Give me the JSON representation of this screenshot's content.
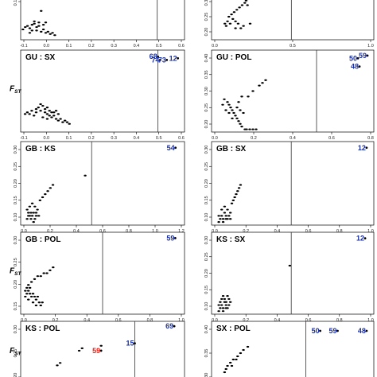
{
  "colors": {
    "points": "#000000",
    "outlier_blue": "#1a2fa0",
    "outlier_red": "#e0221a",
    "threshold_line": "#333333"
  },
  "chart_data": [
    {
      "type": "scatter",
      "title": "",
      "ylabel": "",
      "xticks": [
        "-0.1",
        "0.0",
        "0.1",
        "0.2",
        "0.3",
        "0.4",
        "0.5",
        "0.6"
      ],
      "yticks": [
        "0.15"
      ],
      "xlim": [
        -0.1,
        0.62
      ],
      "ylim": [
        0.05,
        0.45
      ],
      "threshold_x": 0.5,
      "points": [
        [
          -0.07,
          0.17
        ],
        [
          -0.05,
          0.18
        ],
        [
          -0.03,
          0.16
        ],
        [
          -0.06,
          0.15
        ],
        [
          -0.04,
          0.19
        ],
        [
          -0.02,
          0.17
        ],
        [
          -0.08,
          0.16
        ],
        [
          -0.03,
          0.13
        ],
        [
          -0.01,
          0.12
        ],
        [
          0.0,
          0.14
        ],
        [
          0.01,
          0.11
        ],
        [
          0.02,
          0.12
        ],
        [
          0.03,
          0.1
        ],
        [
          0.04,
          0.11
        ],
        [
          -0.05,
          0.13
        ],
        [
          -0.09,
          0.14
        ],
        [
          -0.02,
          0.2
        ],
        [
          -0.04,
          0.21
        ],
        [
          0.0,
          0.18
        ],
        [
          0.01,
          0.2
        ],
        [
          -0.01,
          0.3
        ],
        [
          0.05,
          0.09
        ],
        [
          -0.06,
          0.11
        ]
      ],
      "outliers": []
    },
    {
      "type": "scatter",
      "title": "",
      "ylabel": "",
      "xticks": [
        "0.0",
        "0.5",
        "1.0"
      ],
      "yticks": [
        "0.30",
        "0.25",
        "0.20"
      ],
      "xlim": [
        -0.1,
        1.12
      ],
      "ylim": [
        0.15,
        0.35
      ],
      "threshold_x": 0.5,
      "points": [
        [
          0.0,
          0.22
        ],
        [
          0.02,
          0.23
        ],
        [
          0.04,
          0.22
        ],
        [
          0.06,
          0.24
        ],
        [
          0.08,
          0.23
        ],
        [
          0.1,
          0.22
        ],
        [
          0.12,
          0.2
        ],
        [
          0.14,
          0.21
        ],
        [
          0.03,
          0.25
        ],
        [
          0.05,
          0.26
        ],
        [
          0.07,
          0.27
        ],
        [
          0.09,
          0.28
        ],
        [
          0.11,
          0.29
        ],
        [
          0.13,
          0.3
        ],
        [
          0.15,
          0.31
        ],
        [
          0.17,
          0.3
        ],
        [
          0.01,
          0.21
        ],
        [
          0.18,
          0.33
        ],
        [
          0.16,
          0.32
        ],
        [
          0.19,
          0.22
        ],
        [
          0.08,
          0.2
        ]
      ],
      "outliers": []
    },
    {
      "type": "scatter",
      "title": "GU : SX",
      "ylabel": "FST",
      "xticks": [
        "-0.1",
        "0.0",
        "0.1",
        "0.2",
        "0.3",
        "0.4",
        "0.5",
        "0.6"
      ],
      "yticks": [],
      "xlim": [
        -0.12,
        0.62
      ],
      "ylim": [
        0.0,
        0.5
      ],
      "threshold_x": 0.5,
      "points": [
        [
          -0.09,
          0.12
        ],
        [
          -0.07,
          0.13
        ],
        [
          -0.05,
          0.12
        ],
        [
          -0.03,
          0.13
        ],
        [
          -0.01,
          0.12
        ],
        [
          0.0,
          0.11
        ],
        [
          0.01,
          0.13
        ],
        [
          0.02,
          0.12
        ],
        [
          -0.04,
          0.15
        ],
        [
          -0.02,
          0.16
        ],
        [
          -0.01,
          0.14
        ],
        [
          0.0,
          0.15
        ],
        [
          0.01,
          0.1
        ],
        [
          0.02,
          0.09
        ],
        [
          0.03,
          0.1
        ],
        [
          0.04,
          0.08
        ],
        [
          0.05,
          0.07
        ],
        [
          0.06,
          0.08
        ],
        [
          0.07,
          0.06
        ],
        [
          0.08,
          0.07
        ],
        [
          0.09,
          0.06
        ],
        [
          0.03,
          0.12
        ],
        [
          -0.06,
          0.1
        ],
        [
          -0.08,
          0.11
        ],
        [
          -0.02,
          0.09
        ],
        [
          0.0,
          0.08
        ],
        [
          -0.1,
          0.11
        ],
        [
          0.04,
          0.13
        ],
        [
          0.05,
          0.11
        ],
        [
          -0.03,
          0.17
        ],
        [
          0.1,
          0.05
        ],
        [
          -0.05,
          0.14
        ]
      ],
      "outliers": [
        {
          "label": "68",
          "x": 0.5,
          "y": 0.46,
          "color": "blue"
        },
        {
          "label": "74",
          "x": 0.51,
          "y": 0.44,
          "color": "blue"
        },
        {
          "label": "73",
          "x": 0.54,
          "y": 0.44,
          "color": "blue"
        },
        {
          "label": "12",
          "x": 0.59,
          "y": 0.45,
          "color": "blue"
        }
      ]
    },
    {
      "type": "scatter",
      "title": "GU : POL",
      "ylabel": "",
      "xticks": [
        "0.0",
        "0.2",
        "0.4",
        "0.6",
        "0.8"
      ],
      "yticks": [
        "0.40",
        "0.35",
        "0.30",
        "0.25",
        "0.20"
      ],
      "xlim": [
        -0.16,
        0.86
      ],
      "ylim": [
        0.15,
        0.45
      ],
      "threshold_x": 0.5,
      "points": [
        [
          -0.08,
          0.27
        ],
        [
          -0.06,
          0.26
        ],
        [
          -0.05,
          0.25
        ],
        [
          -0.04,
          0.24
        ],
        [
          -0.03,
          0.23
        ],
        [
          -0.02,
          0.22
        ],
        [
          -0.01,
          0.21
        ],
        [
          0.0,
          0.2
        ],
        [
          0.01,
          0.19
        ],
        [
          0.02,
          0.18
        ],
        [
          0.03,
          0.17
        ],
        [
          0.05,
          0.16
        ],
        [
          0.06,
          0.16
        ],
        [
          0.08,
          0.16
        ],
        [
          0.1,
          0.16
        ],
        [
          0.12,
          0.16
        ],
        [
          -0.05,
          0.22
        ],
        [
          -0.03,
          0.2
        ],
        [
          0.0,
          0.24
        ],
        [
          0.02,
          0.23
        ],
        [
          0.04,
          0.22
        ],
        [
          -0.07,
          0.23
        ],
        [
          0.07,
          0.28
        ],
        [
          0.1,
          0.3
        ],
        [
          0.14,
          0.32
        ],
        [
          0.16,
          0.33
        ],
        [
          0.18,
          0.34
        ],
        [
          -0.09,
          0.25
        ],
        [
          0.01,
          0.26
        ],
        [
          0.03,
          0.28
        ]
      ],
      "outliers": [
        {
          "label": "50",
          "x": 0.76,
          "y": 0.42,
          "color": "blue"
        },
        {
          "label": "59",
          "x": 0.82,
          "y": 0.43,
          "color": "blue"
        },
        {
          "label": "48",
          "x": 0.77,
          "y": 0.39,
          "color": "blue"
        }
      ]
    },
    {
      "type": "scatter",
      "title": "GB : KS",
      "ylabel": "",
      "xticks": [
        "0.0",
        "0.2",
        "0.4",
        "0.6",
        "0.8",
        "1.0",
        "1.2"
      ],
      "yticks": [
        "0.30",
        "0.25",
        "0.20",
        "0.15",
        "0.10"
      ],
      "xlim": [
        -0.05,
        1.22
      ],
      "ylim": [
        0.08,
        0.35
      ],
      "threshold_x": 0.5,
      "points": [
        [
          0.0,
          0.13
        ],
        [
          0.01,
          0.12
        ],
        [
          0.02,
          0.11
        ],
        [
          0.03,
          0.12
        ],
        [
          0.04,
          0.11
        ],
        [
          0.05,
          0.12
        ],
        [
          0.06,
          0.1
        ],
        [
          0.07,
          0.11
        ],
        [
          0.02,
          0.14
        ],
        [
          0.04,
          0.15
        ],
        [
          0.06,
          0.14
        ],
        [
          0.08,
          0.13
        ],
        [
          0.1,
          0.16
        ],
        [
          0.12,
          0.17
        ],
        [
          0.14,
          0.18
        ],
        [
          0.16,
          0.19
        ],
        [
          0.18,
          0.2
        ],
        [
          0.2,
          0.21
        ],
        [
          0.0,
          0.1
        ],
        [
          0.01,
          0.11
        ],
        [
          0.03,
          0.1
        ],
        [
          0.05,
          0.09
        ],
        [
          0.07,
          0.12
        ],
        [
          0.09,
          0.11
        ],
        [
          0.45,
          0.24
        ]
      ],
      "outliers": [
        {
          "label": "54",
          "x": 1.15,
          "y": 0.33,
          "color": "blue"
        }
      ]
    },
    {
      "type": "scatter",
      "title": "GB : SX",
      "ylabel": "",
      "xticks": [
        "0.0",
        "0.2",
        "0.4",
        "0.6",
        "0.8",
        "1.0"
      ],
      "yticks": [
        "0.30",
        "0.25",
        "0.20",
        "0.15",
        "0.10"
      ],
      "xlim": [
        -0.05,
        1.07
      ],
      "ylim": [
        0.08,
        0.35
      ],
      "threshold_x": 0.5,
      "points": [
        [
          0.0,
          0.11
        ],
        [
          0.01,
          0.1
        ],
        [
          0.02,
          0.11
        ],
        [
          0.03,
          0.1
        ],
        [
          0.04,
          0.12
        ],
        [
          0.05,
          0.11
        ],
        [
          0.06,
          0.1
        ],
        [
          0.07,
          0.11
        ],
        [
          0.02,
          0.13
        ],
        [
          0.04,
          0.14
        ],
        [
          0.06,
          0.13
        ],
        [
          0.08,
          0.12
        ],
        [
          0.09,
          0.15
        ],
        [
          0.1,
          0.16
        ],
        [
          0.11,
          0.17
        ],
        [
          0.12,
          0.18
        ],
        [
          0.13,
          0.19
        ],
        [
          0.14,
          0.2
        ],
        [
          0.0,
          0.09
        ],
        [
          0.03,
          0.09
        ],
        [
          0.05,
          0.1
        ],
        [
          0.08,
          0.1
        ],
        [
          0.15,
          0.21
        ]
      ],
      "outliers": [
        {
          "label": "12",
          "x": 1.02,
          "y": 0.33,
          "color": "blue"
        }
      ]
    },
    {
      "type": "scatter",
      "title": "GB : POL",
      "ylabel": "FST",
      "xticks": [
        "0.0",
        "0.2",
        "0.4",
        "0.6",
        "0.8",
        "1.0"
      ],
      "yticks": [
        "0.30",
        "0.25",
        "0.20",
        "0.15"
      ],
      "xlim": [
        -0.03,
        1.03
      ],
      "ylim": [
        0.12,
        0.4
      ],
      "threshold_x": 0.5,
      "points": [
        [
          0.0,
          0.2
        ],
        [
          0.01,
          0.19
        ],
        [
          0.02,
          0.2
        ],
        [
          0.03,
          0.19
        ],
        [
          0.04,
          0.18
        ],
        [
          0.05,
          0.19
        ],
        [
          0.06,
          0.18
        ],
        [
          0.07,
          0.17
        ],
        [
          0.08,
          0.18
        ],
        [
          0.09,
          0.16
        ],
        [
          0.1,
          0.15
        ],
        [
          0.11,
          0.16
        ],
        [
          0.02,
          0.22
        ],
        [
          0.04,
          0.23
        ],
        [
          0.06,
          0.24
        ],
        [
          0.08,
          0.25
        ],
        [
          0.1,
          0.25
        ],
        [
          0.12,
          0.26
        ],
        [
          0.14,
          0.26
        ],
        [
          0.16,
          0.27
        ],
        [
          0.18,
          0.28
        ],
        [
          0.0,
          0.18
        ],
        [
          0.02,
          0.17
        ],
        [
          0.05,
          0.16
        ],
        [
          0.07,
          0.15
        ],
        [
          0.03,
          0.21
        ],
        [
          0.01,
          0.21
        ]
      ],
      "outliers": [
        {
          "label": "59",
          "x": 0.97,
          "y": 0.38,
          "color": "blue"
        }
      ]
    },
    {
      "type": "scatter",
      "title": "KS : SX",
      "ylabel": "",
      "xticks": [
        "0.0",
        "0.2",
        "0.4",
        "0.6",
        "0.8",
        "1.0"
      ],
      "yticks": [
        "0.30",
        "0.25",
        "0.20",
        "0.15",
        "0.10"
      ],
      "xlim": [
        -0.05,
        1.07
      ],
      "ylim": [
        0.08,
        0.35
      ],
      "threshold_x": 0.5,
      "points": [
        [
          0.0,
          0.11
        ],
        [
          0.01,
          0.1
        ],
        [
          0.02,
          0.11
        ],
        [
          0.03,
          0.1
        ],
        [
          0.04,
          0.12
        ],
        [
          0.05,
          0.11
        ],
        [
          0.06,
          0.1
        ],
        [
          0.07,
          0.11
        ],
        [
          0.02,
          0.13
        ],
        [
          0.03,
          0.14
        ],
        [
          0.04,
          0.13
        ],
        [
          0.05,
          0.12
        ],
        [
          0.06,
          0.14
        ],
        [
          0.07,
          0.13
        ],
        [
          0.0,
          0.09
        ],
        [
          0.03,
          0.09
        ],
        [
          0.05,
          0.1
        ],
        [
          0.08,
          0.12
        ],
        [
          0.01,
          0.12
        ],
        [
          0.49,
          0.24
        ]
      ],
      "outliers": [
        {
          "label": "12",
          "x": 1.01,
          "y": 0.33,
          "color": "blue"
        }
      ]
    },
    {
      "type": "scatter",
      "title": "KS : POL",
      "ylabel": "FST",
      "xticks": [],
      "yticks": [
        "0.30",
        "0.25",
        "0.20"
      ],
      "xlim": [
        -0.05,
        1.07
      ],
      "ylim": [
        0.12,
        0.38
      ],
      "threshold_x": 0.73,
      "points": [
        [
          0.2,
          0.2
        ],
        [
          0.22,
          0.21
        ],
        [
          0.35,
          0.26
        ],
        [
          0.37,
          0.27
        ],
        [
          0.5,
          0.28
        ],
        [
          0.0,
          0.13
        ],
        [
          0.02,
          0.12
        ]
      ],
      "outliers": [
        {
          "label": "69",
          "x": 1.0,
          "y": 0.36,
          "color": "blue"
        },
        {
          "label": "15",
          "x": 0.73,
          "y": 0.29,
          "color": "blue"
        },
        {
          "label": "59",
          "x": 0.5,
          "y": 0.26,
          "color": "red"
        }
      ]
    },
    {
      "type": "scatter",
      "title": "SX : POL",
      "ylabel": "",
      "xticks": [],
      "yticks": [
        "0.40",
        "0.35",
        "0.30"
      ],
      "xlim": [
        -0.05,
        1.07
      ],
      "ylim": [
        0.25,
        0.45
      ],
      "threshold_x": 0.6,
      "points": [
        [
          0.05,
          0.3
        ],
        [
          0.06,
          0.31
        ],
        [
          0.08,
          0.32
        ],
        [
          0.1,
          0.33
        ],
        [
          0.13,
          0.34
        ],
        [
          0.15,
          0.35
        ],
        [
          0.17,
          0.36
        ],
        [
          0.2,
          0.37
        ],
        [
          0.04,
          0.29
        ],
        [
          0.09,
          0.31
        ],
        [
          0.12,
          0.33
        ]
      ],
      "outliers": [
        {
          "label": "50",
          "x": 0.7,
          "y": 0.42,
          "color": "blue"
        },
        {
          "label": "59",
          "x": 0.82,
          "y": 0.42,
          "color": "blue"
        },
        {
          "label": "48",
          "x": 1.02,
          "y": 0.42,
          "color": "blue"
        }
      ]
    }
  ]
}
